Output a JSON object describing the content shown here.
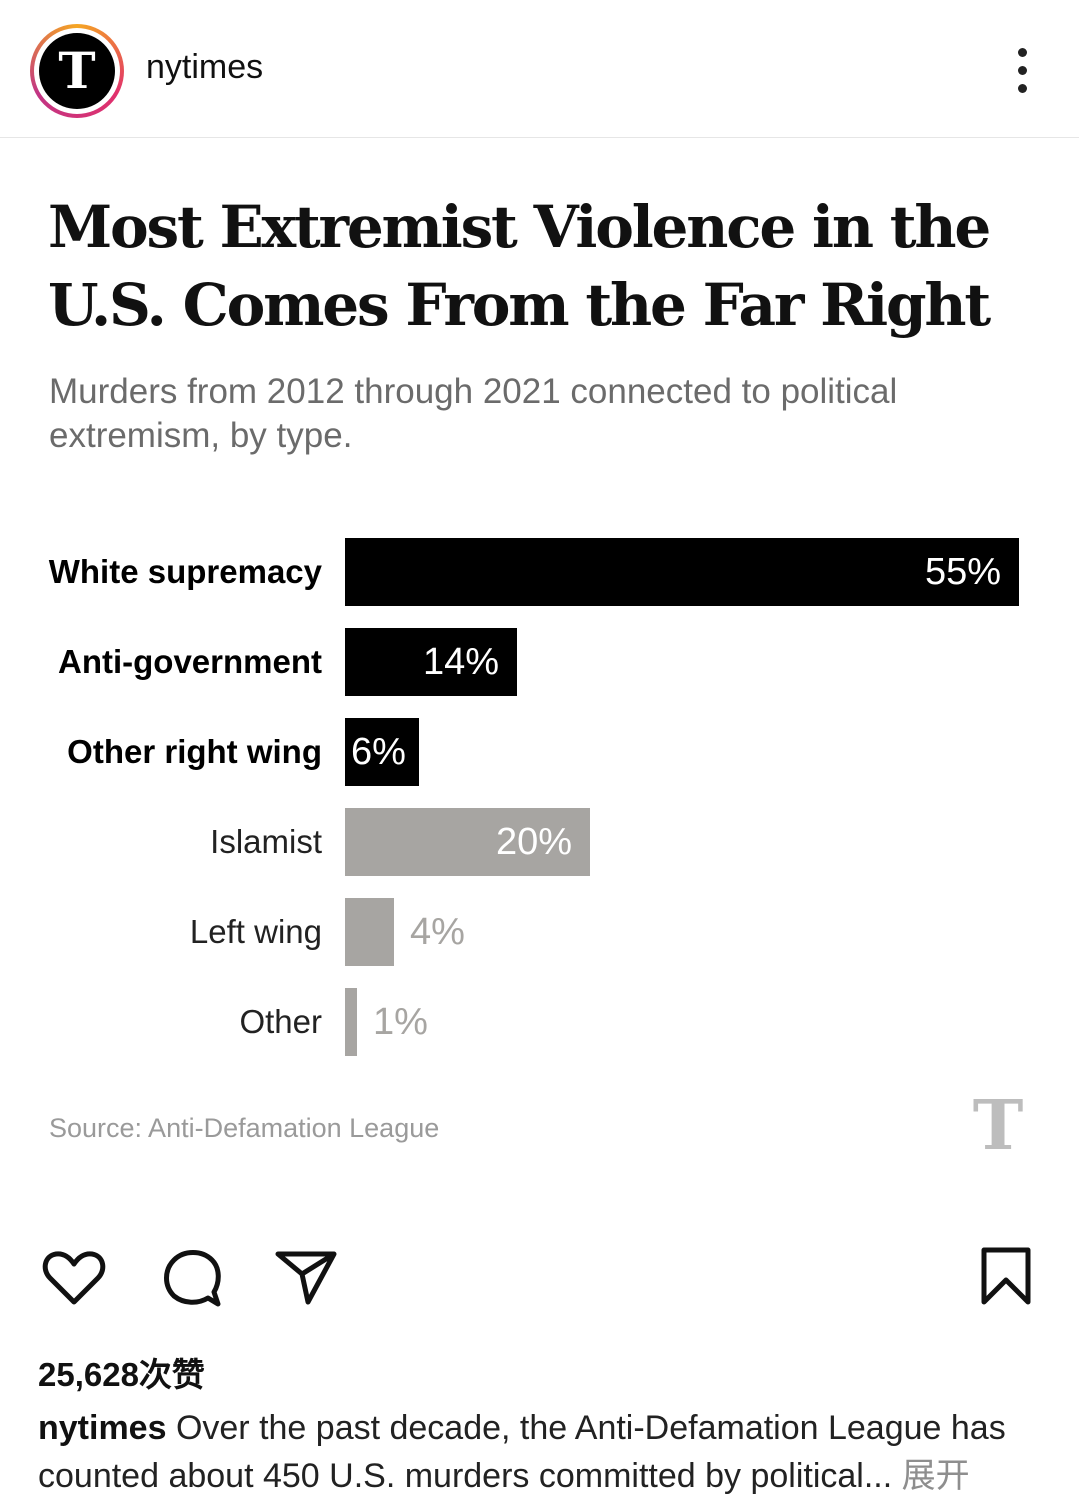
{
  "header": {
    "avatar_letter": "T",
    "username": "nytimes"
  },
  "graphic": {
    "title": "Most Extremist Violence in the U.S. Comes From the Far Right",
    "subtitle": "Murders from 2012 through 2021 connected to political extremism, by type.",
    "source": "Source: Anti-Defamation League",
    "watermark_letter": "T"
  },
  "chart_data": {
    "type": "bar",
    "orientation": "horizontal",
    "title": "Most Extremist Violence in the U.S. Comes From the Far Right",
    "subtitle": "Murders from 2012 through 2021 connected to political extremism, by type.",
    "unit": "%",
    "xlim": [
      0,
      55
    ],
    "categories": [
      "White supremacy",
      "Anti-government",
      "Other right wing",
      "Islamist",
      "Left wing",
      "Other"
    ],
    "values": [
      55,
      14,
      6,
      20,
      4,
      1
    ],
    "labels": [
      "55%",
      "14%",
      "6%",
      "20%",
      "4%",
      "1%"
    ],
    "groups": [
      "right",
      "right",
      "right",
      "other",
      "other",
      "other"
    ],
    "colors": {
      "right": "#000000",
      "other": "#a7a5a2"
    },
    "source": "Source: Anti-Defamation League"
  },
  "post": {
    "likes": "25,628次赞",
    "caption_user": "nytimes",
    "caption_text": " Over the past decade, the Anti-Defamation League has counted about 450 U.S. murders committed by political... ",
    "expand_label": "展开"
  }
}
